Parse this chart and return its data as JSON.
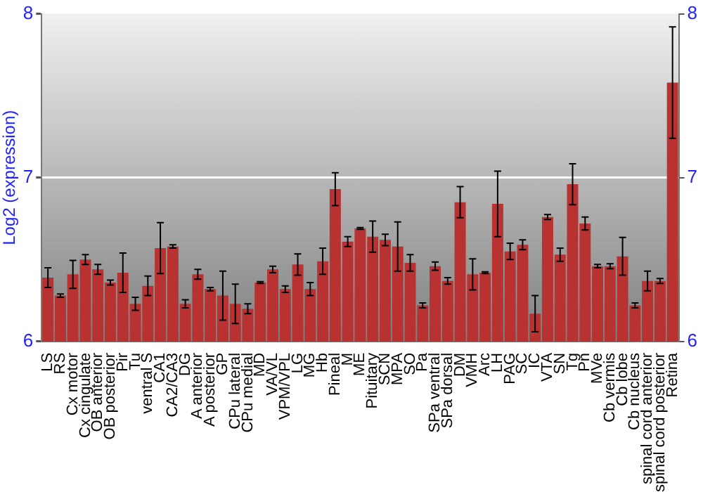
{
  "chart_data": {
    "type": "bar",
    "ylabel": "Log2 (expression)",
    "categories": [
      "LS",
      "RS",
      "Cx motor",
      "Cx cingulate",
      "OB anterior",
      "OB posterior",
      "Pir",
      "Tu",
      "ventral S",
      "CA1",
      "CA2/CA3",
      "DG",
      "A anterior",
      "A posterior",
      "GP",
      "CPu lateral",
      "CPu medial",
      "MD",
      "VA/VL",
      "VPM/VPL",
      "LG",
      "MG",
      "Hb",
      "Pineal",
      "M",
      "ME",
      "Pituitary",
      "SCN",
      "MPA",
      "SO",
      "Pa",
      "SPa ventral",
      "SPa dorsal",
      "DM",
      "VMH",
      "Arc",
      "LH",
      "PAG",
      "SC",
      "IC",
      "VTA",
      "SN",
      "Tg",
      "Pn",
      "MVe",
      "Cb vermis",
      "Cb lobe",
      "Cb nucleus",
      "spinal cord anterior",
      "spinal cord posterior",
      "Retina"
    ],
    "values": [
      6.39,
      6.28,
      6.41,
      6.5,
      6.44,
      6.36,
      6.42,
      6.23,
      6.34,
      6.57,
      6.58,
      6.23,
      6.41,
      6.32,
      6.28,
      6.23,
      6.2,
      6.36,
      6.44,
      6.32,
      6.47,
      6.32,
      6.49,
      6.93,
      6.61,
      6.69,
      6.64,
      6.62,
      6.58,
      6.48,
      6.22,
      6.46,
      6.37,
      6.85,
      6.41,
      6.42,
      6.84,
      6.55,
      6.59,
      6.17,
      6.76,
      6.53,
      6.96,
      6.72,
      6.46,
      6.46,
      6.52,
      6.22,
      6.37,
      6.37,
      7.58
    ],
    "errors": [
      0.06,
      0.01,
      0.085,
      0.03,
      0.03,
      0.015,
      0.12,
      0.04,
      0.06,
      0.155,
      0.01,
      0.025,
      0.03,
      0.01,
      0.15,
      0.12,
      0.03,
      0.005,
      0.02,
      0.02,
      0.065,
      0.04,
      0.08,
      0.1,
      0.03,
      0.005,
      0.095,
      0.035,
      0.15,
      0.05,
      0.015,
      0.025,
      0.02,
      0.095,
      0.095,
      0.005,
      0.2,
      0.05,
      0.03,
      0.11,
      0.015,
      0.04,
      0.125,
      0.04,
      0.01,
      0.015,
      0.115,
      0.015,
      0.06,
      0.015,
      0.34
    ],
    "color": "#b83232",
    "ylim": [
      6,
      8
    ],
    "yticks": [
      6,
      7,
      8
    ],
    "y2lim": [
      6,
      8
    ],
    "y2ticks": [
      6,
      7,
      8
    ],
    "grid": "y",
    "legend": false
  }
}
